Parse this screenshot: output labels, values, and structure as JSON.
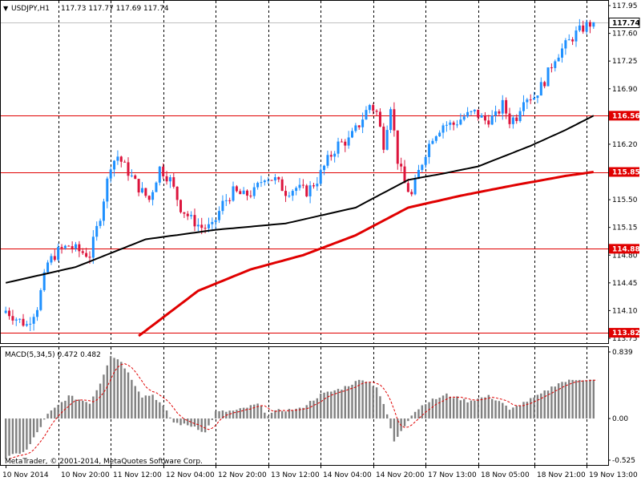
{
  "header": {
    "symbol": "USDJPY,H1",
    "ohlc": "117.73 117.77 117.69 117.74",
    "dropdown_glyph": "▼"
  },
  "macd": {
    "title": "MACD(5,34,5) 0.472 0.482",
    "scale_top": "0.839",
    "scale_zero": "0.00",
    "scale_bottom": "-0.525"
  },
  "copyright": "MetaTrader, © 2001-2014, MetaQuotes Software Corp.",
  "colors": {
    "bull": "#1e90ff",
    "bear": "#dc143c",
    "ma_slow": "#e00000",
    "ma_fast": "#000000",
    "hline": "#e00000",
    "macd_bar": "#808080",
    "macd_signal": "#e00000",
    "current_tag_bg": "#ffffff",
    "level_tag_bg": "#e00000"
  },
  "chart_data": {
    "type": "candlestick",
    "price_axis": {
      "min": 113.75,
      "max": 117.95,
      "ticks": [
        "117.95",
        "117.60",
        "117.25",
        "116.90",
        "116.20",
        "115.50",
        "115.15",
        "114.80",
        "114.45",
        "114.10",
        "113.75"
      ],
      "current": "117.74"
    },
    "time_axis": [
      "10 Nov 2014",
      "10 Nov 20:00",
      "11 Nov 12:00",
      "12 Nov 04:00",
      "12 Nov 20:00",
      "13 Nov 12:00",
      "14 Nov 04:00",
      "14 Nov 20:00",
      "17 Nov 13:00",
      "18 Nov 05:00",
      "18 Nov 21:00",
      "19 Nov 13:00"
    ],
    "horizontal_levels": [
      {
        "value": 116.56,
        "label": "116.56"
      },
      {
        "value": 115.85,
        "label": "115.85"
      },
      {
        "value": 114.88,
        "label": "114.88"
      },
      {
        "value": 113.82,
        "label": "113.82"
      }
    ],
    "anchors": [
      [
        0,
        114.1
      ],
      [
        3,
        114.0
      ],
      [
        6,
        113.92
      ],
      [
        9,
        114.15
      ],
      [
        12,
        114.7
      ],
      [
        15,
        114.85
      ],
      [
        18,
        114.92
      ],
      [
        21,
        114.85
      ],
      [
        24,
        114.8
      ],
      [
        27,
        115.3
      ],
      [
        30,
        115.95
      ],
      [
        32,
        116.05
      ],
      [
        35,
        115.85
      ],
      [
        38,
        115.65
      ],
      [
        41,
        115.5
      ],
      [
        44,
        115.9
      ],
      [
        47,
        115.75
      ],
      [
        50,
        115.4
      ],
      [
        53,
        115.25
      ],
      [
        56,
        115.15
      ],
      [
        59,
        115.15
      ],
      [
        62,
        115.45
      ],
      [
        65,
        115.6
      ],
      [
        68,
        115.55
      ],
      [
        71,
        115.6
      ],
      [
        74,
        115.8
      ],
      [
        77,
        115.75
      ],
      [
        80,
        115.6
      ],
      [
        83,
        115.65
      ],
      [
        86,
        115.6
      ],
      [
        89,
        115.75
      ],
      [
        92,
        116.0
      ],
      [
        95,
        116.2
      ],
      [
        98,
        116.25
      ],
      [
        101,
        116.45
      ],
      [
        104,
        116.7
      ],
      [
        106,
        116.6
      ],
      [
        108,
        116.2
      ],
      [
        110,
        116.7
      ],
      [
        112,
        116.0
      ],
      [
        114,
        115.7
      ],
      [
        116,
        115.55
      ],
      [
        118,
        115.85
      ],
      [
        120,
        116.1
      ],
      [
        122,
        116.3
      ],
      [
        125,
        116.45
      ],
      [
        128,
        116.45
      ],
      [
        131,
        116.55
      ],
      [
        134,
        116.6
      ],
      [
        137,
        116.5
      ],
      [
        140,
        116.55
      ],
      [
        142,
        116.7
      ],
      [
        144,
        116.5
      ],
      [
        146,
        116.55
      ],
      [
        148,
        116.8
      ],
      [
        151,
        116.8
      ],
      [
        154,
        117.0
      ],
      [
        157,
        117.3
      ],
      [
        160,
        117.45
      ],
      [
        163,
        117.6
      ],
      [
        166,
        117.7
      ],
      [
        168,
        117.74
      ]
    ],
    "ma_fast": [
      [
        0,
        114.45
      ],
      [
        20,
        114.65
      ],
      [
        40,
        115.0
      ],
      [
        60,
        115.12
      ],
      [
        80,
        115.2
      ],
      [
        100,
        115.4
      ],
      [
        115,
        115.75
      ],
      [
        125,
        115.83
      ],
      [
        135,
        115.92
      ],
      [
        150,
        116.18
      ],
      [
        160,
        116.38
      ],
      [
        168,
        116.56
      ]
    ],
    "ma_slow": [
      [
        38,
        113.78
      ],
      [
        55,
        114.35
      ],
      [
        70,
        114.62
      ],
      [
        85,
        114.8
      ],
      [
        100,
        115.05
      ],
      [
        115,
        115.4
      ],
      [
        130,
        115.55
      ],
      [
        145,
        115.68
      ],
      [
        160,
        115.8
      ],
      [
        168,
        115.85
      ]
    ],
    "macd": {
      "min": -0.525,
      "max": 0.839,
      "anchors": [
        [
          0,
          -0.5
        ],
        [
          6,
          -0.4
        ],
        [
          12,
          0.05
        ],
        [
          18,
          0.28
        ],
        [
          24,
          0.2
        ],
        [
          27,
          0.45
        ],
        [
          30,
          0.8
        ],
        [
          33,
          0.72
        ],
        [
          36,
          0.5
        ],
        [
          39,
          0.28
        ],
        [
          42,
          0.3
        ],
        [
          45,
          0.15
        ],
        [
          48,
          -0.05
        ],
        [
          51,
          -0.08
        ],
        [
          54,
          -0.1
        ],
        [
          57,
          -0.18
        ],
        [
          60,
          0.08
        ],
        [
          66,
          0.1
        ],
        [
          72,
          0.18
        ],
        [
          75,
          0.05
        ],
        [
          78,
          0.1
        ],
        [
          84,
          0.12
        ],
        [
          90,
          0.3
        ],
        [
          96,
          0.38
        ],
        [
          102,
          0.5
        ],
        [
          106,
          0.4
        ],
        [
          109,
          0.05
        ],
        [
          111,
          -0.3
        ],
        [
          113,
          -0.15
        ],
        [
          116,
          0.05
        ],
        [
          120,
          0.2
        ],
        [
          126,
          0.3
        ],
        [
          132,
          0.22
        ],
        [
          138,
          0.28
        ],
        [
          142,
          0.2
        ],
        [
          144,
          0.1
        ],
        [
          147,
          0.18
        ],
        [
          152,
          0.28
        ],
        [
          158,
          0.45
        ],
        [
          164,
          0.5
        ],
        [
          168,
          0.48
        ]
      ]
    }
  }
}
